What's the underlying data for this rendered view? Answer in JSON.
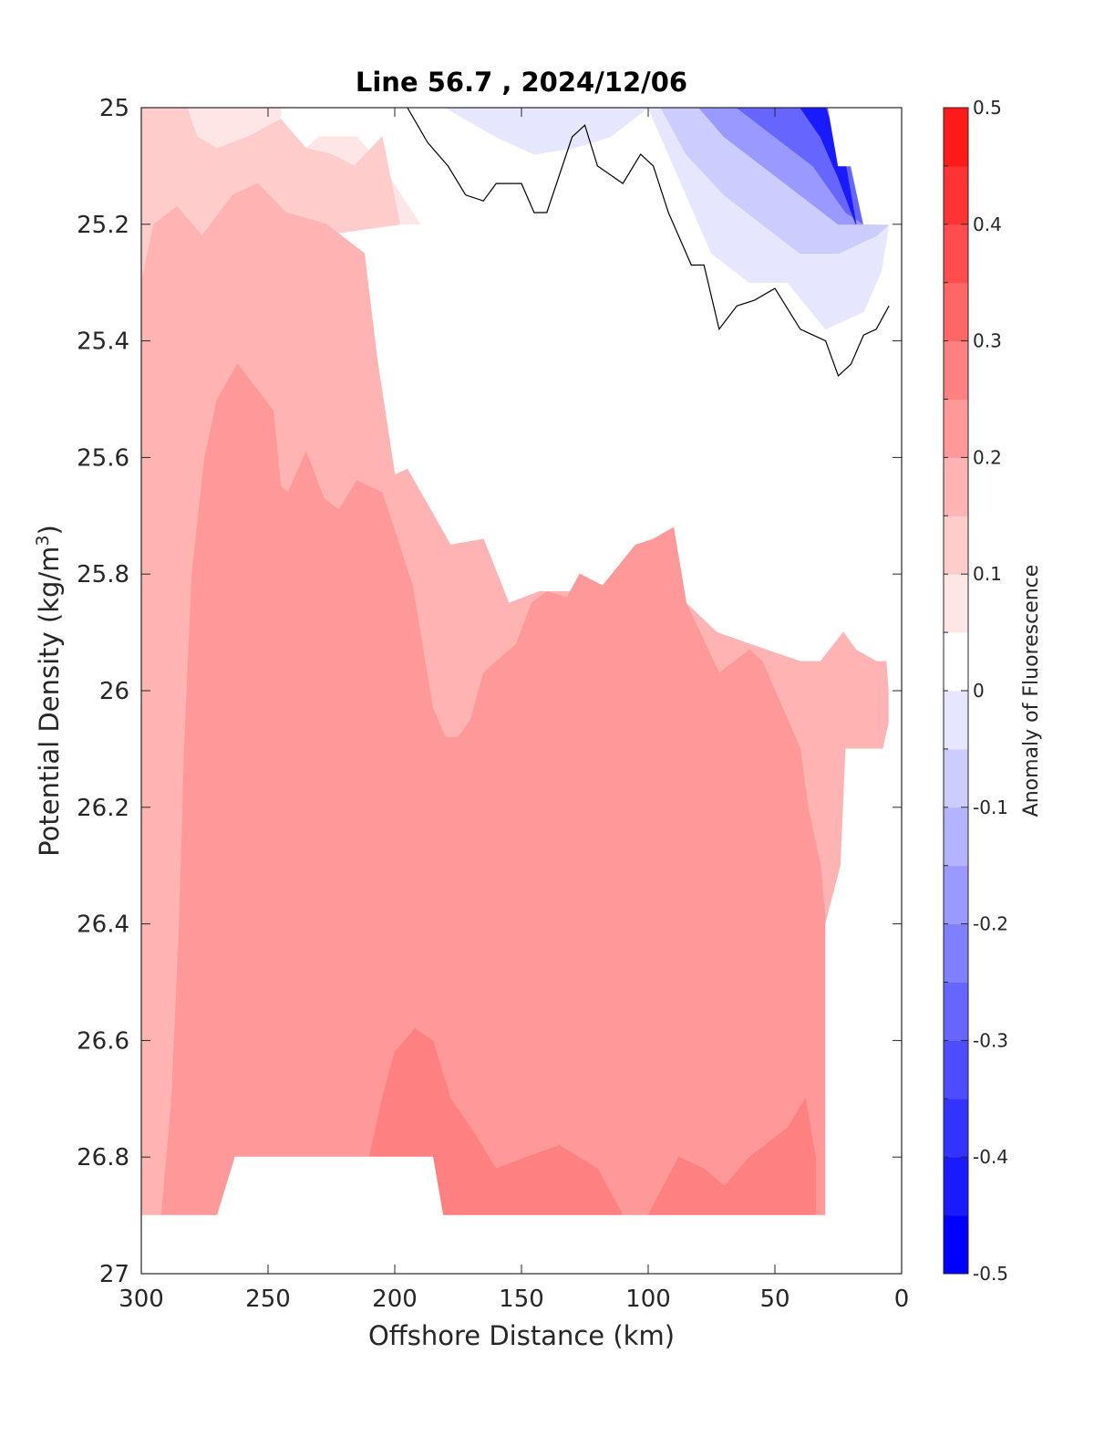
{
  "chart_data": {
    "type": "contour",
    "title": "Line 56.7 , 2024/12/06",
    "xlabel": "Offshore Distance (km)",
    "ylabel": "Potential Density (kg/m³)",
    "ylabel_main": "Potential Density (kg/m",
    "ylabel_sup": "3",
    "ylabel_end": ")",
    "colorbar_label": "Anomaly of Fluorescence",
    "xlim": [
      300,
      0
    ],
    "ylim": [
      25,
      27
    ],
    "y_reversed": true,
    "x_reversed": true,
    "x_ticks": [
      300,
      250,
      200,
      150,
      100,
      50,
      0
    ],
    "x_tick_labels": [
      "300",
      "250",
      "200",
      "150",
      "100",
      "50",
      "0"
    ],
    "y_ticks": [
      25,
      25.2,
      25.4,
      25.6,
      25.8,
      26,
      26.2,
      26.4,
      26.6,
      26.8,
      27
    ],
    "y_tick_labels": [
      "25",
      "25.2",
      "25.4",
      "25.6",
      "25.8",
      "26",
      "26.2",
      "26.4",
      "26.6",
      "26.8",
      "27"
    ],
    "colorbar": {
      "range": [
        -0.5,
        0.5
      ],
      "levels": [
        -0.5,
        -0.45,
        -0.4,
        -0.35,
        -0.3,
        -0.25,
        -0.2,
        -0.15,
        -0.1,
        -0.05,
        0,
        0.05,
        0.1,
        0.15,
        0.2,
        0.25,
        0.3,
        0.35,
        0.4,
        0.45,
        0.5
      ],
      "colors": [
        "#0000ff",
        "#1a1aff",
        "#3333ff",
        "#4d4dff",
        "#6666ff",
        "#8080ff",
        "#9999ff",
        "#b3b3ff",
        "#ccccff",
        "#e6e6ff",
        "#ffffff",
        "#ffe6e6",
        "#ffcccc",
        "#ffb3b3",
        "#ff9999",
        "#ff8080",
        "#ff6666",
        "#ff4d4d",
        "#ff3333",
        "#ff1a1a",
        "#ff0000"
      ],
      "ticks": [
        -0.5,
        -0.4,
        -0.3,
        -0.2,
        -0.1,
        0,
        0.1,
        0.2,
        0.3,
        0.4,
        0.5
      ],
      "tick_labels": [
        "-0.5",
        "-0.4",
        "-0.3",
        "-0.2",
        "-0.1",
        "0",
        "0.1",
        "0.2",
        "0.3",
        "0.4",
        "0.5"
      ]
    },
    "regions": [
      {
        "name": "anomaly 0.05 to 0.10",
        "color": "#ffe6e6",
        "points": [
          [
            300,
            25
          ],
          [
            245,
            25
          ],
          [
            245,
            25.05
          ],
          [
            240,
            25.09
          ],
          [
            230,
            25.05
          ],
          [
            215,
            25.05
          ],
          [
            205,
            25.1
          ],
          [
            190,
            25.2
          ],
          [
            300,
            25.2
          ]
        ]
      },
      {
        "name": "anomaly 0.10 to 0.15",
        "color": "#ffcccc",
        "points": [
          [
            300,
            25
          ],
          [
            282,
            25
          ],
          [
            278,
            25.05
          ],
          [
            270,
            25.07
          ],
          [
            258,
            25.05
          ],
          [
            245,
            25.02
          ],
          [
            235,
            25.07
          ],
          [
            225,
            25.08
          ],
          [
            216,
            25.1
          ],
          [
            205,
            25.05
          ],
          [
            198,
            25.2
          ],
          [
            280,
            25.25
          ],
          [
            300,
            25.3
          ]
        ]
      },
      {
        "name": "anomaly 0.15 to 0.20",
        "color": "#ffb3b3",
        "points": [
          [
            300,
            25.3
          ],
          [
            295,
            25.2
          ],
          [
            286,
            25.17
          ],
          [
            276,
            25.22
          ],
          [
            264,
            25.15
          ],
          [
            254,
            25.13
          ],
          [
            243,
            25.18
          ],
          [
            227,
            25.2
          ],
          [
            212,
            25.25
          ],
          [
            207,
            25.43
          ],
          [
            200,
            25.63
          ],
          [
            195,
            25.62
          ],
          [
            178,
            25.75
          ],
          [
            165,
            25.74
          ],
          [
            155,
            25.85
          ],
          [
            143,
            25.83
          ],
          [
            128,
            25.83
          ],
          [
            120,
            25.9
          ],
          [
            115,
            25.85
          ],
          [
            100,
            25.88
          ],
          [
            88,
            25.9
          ],
          [
            85,
            25.85
          ],
          [
            73,
            25.9
          ],
          [
            60,
            25.92
          ],
          [
            40,
            25.95
          ],
          [
            32,
            25.95
          ],
          [
            23,
            25.9
          ],
          [
            18,
            25.93
          ],
          [
            10,
            25.95
          ],
          [
            5,
            25.95
          ],
          [
            5,
            26.05
          ],
          [
            18,
            26.3
          ],
          [
            24,
            26.5
          ],
          [
            34,
            26.8
          ],
          [
            34,
            26.9
          ],
          [
            300,
            26.9
          ]
        ]
      },
      {
        "name": "anomaly 0.20 to 0.25",
        "color": "#ff9999",
        "points": [
          [
            292,
            26.9
          ],
          [
            288,
            26.7
          ],
          [
            285,
            26.4
          ],
          [
            283,
            26.1
          ],
          [
            280,
            25.8
          ],
          [
            275,
            25.6
          ],
          [
            270,
            25.5
          ],
          [
            262,
            25.44
          ],
          [
            255,
            25.48
          ],
          [
            248,
            25.52
          ],
          [
            245,
            25.65
          ],
          [
            242,
            25.66
          ],
          [
            235,
            25.59
          ],
          [
            228,
            25.67
          ],
          [
            222,
            25.69
          ],
          [
            215,
            25.64
          ],
          [
            205,
            25.66
          ],
          [
            193,
            25.82
          ],
          [
            185,
            26.03
          ],
          [
            180,
            26.08
          ],
          [
            175,
            26.08
          ],
          [
            170,
            26.05
          ],
          [
            165,
            25.97
          ],
          [
            160,
            25.95
          ],
          [
            152,
            25.92
          ],
          [
            146,
            25.85
          ],
          [
            140,
            25.83
          ],
          [
            132,
            25.84
          ],
          [
            127,
            25.8
          ],
          [
            118,
            25.82
          ],
          [
            105,
            25.75
          ],
          [
            98,
            25.74
          ],
          [
            90,
            25.72
          ],
          [
            85,
            25.85
          ],
          [
            72,
            25.97
          ],
          [
            60,
            25.93
          ],
          [
            55,
            25.95
          ],
          [
            48,
            26.02
          ],
          [
            40,
            26.1
          ],
          [
            37,
            26.2
          ],
          [
            32,
            26.3
          ],
          [
            30,
            26.4
          ],
          [
            30,
            26.5
          ],
          [
            30,
            26.9
          ]
        ]
      },
      {
        "name": "anomaly 0.25 to 0.30",
        "color": "#ff8080",
        "points": [
          [
            215,
            26.9
          ],
          [
            205,
            26.7
          ],
          [
            200,
            26.62
          ],
          [
            192,
            26.58
          ],
          [
            185,
            26.6
          ],
          [
            178,
            26.7
          ],
          [
            170,
            26.75
          ],
          [
            160,
            26.82
          ],
          [
            148,
            26.8
          ],
          [
            135,
            26.78
          ],
          [
            120,
            26.82
          ],
          [
            110,
            26.9
          ],
          [
            100,
            26.9
          ],
          [
            88,
            26.8
          ],
          [
            78,
            26.82
          ],
          [
            70,
            26.85
          ],
          [
            60,
            26.8
          ],
          [
            45,
            26.75
          ],
          [
            38,
            26.7
          ],
          [
            34,
            26.8
          ],
          [
            34,
            26.9
          ]
        ]
      },
      {
        "name": "anomaly 0.00 to 0.05",
        "color": "#ffffff",
        "points": [
          [
            192,
            25
          ],
          [
            170,
            25.1
          ],
          [
            150,
            25.15
          ],
          [
            130,
            25.18
          ],
          [
            115,
            25.22
          ],
          [
            105,
            25.25
          ],
          [
            100,
            25.2
          ],
          [
            80,
            25.35
          ],
          [
            70,
            25.45
          ],
          [
            55,
            25.55
          ],
          [
            40,
            25.58
          ],
          [
            20,
            25.45
          ],
          [
            5,
            25.38
          ],
          [
            5,
            25.25
          ],
          [
            25,
            25.25
          ],
          [
            40,
            25.25
          ],
          [
            55,
            25.15
          ],
          [
            70,
            25.05
          ],
          [
            90,
            25.05
          ],
          [
            100,
            25
          ],
          [
            192,
            25
          ]
        ]
      },
      {
        "name": "anomaly -0.05 to 0.00",
        "color": "#e6e6ff",
        "points": [
          [
            180,
            25
          ],
          [
            160,
            25.05
          ],
          [
            145,
            25.08
          ],
          [
            130,
            25.07
          ],
          [
            115,
            25.05
          ],
          [
            100,
            25
          ],
          [
            95,
            25.05
          ],
          [
            85,
            25.15
          ],
          [
            75,
            25.25
          ],
          [
            60,
            25.3
          ],
          [
            45,
            25.3
          ],
          [
            30,
            25.38
          ],
          [
            15,
            25.35
          ],
          [
            8,
            25.28
          ],
          [
            5,
            25.2
          ],
          [
            25,
            25.18
          ],
          [
            35,
            25.1
          ],
          [
            45,
            25
          ],
          [
            180,
            25
          ]
        ]
      },
      {
        "name": "anomaly -0.10 to -0.05",
        "color": "#ccccff",
        "points": [
          [
            95,
            25
          ],
          [
            85,
            25.08
          ],
          [
            70,
            25.15
          ],
          [
            55,
            25.2
          ],
          [
            40,
            25.25
          ],
          [
            25,
            25.25
          ],
          [
            10,
            25.22
          ],
          [
            5,
            25.2
          ],
          [
            20,
            25.1
          ],
          [
            30,
            25
          ],
          [
            95,
            25
          ]
        ]
      },
      {
        "name": "anomaly -0.20 to -0.10",
        "color": "#9999ff",
        "points": [
          [
            80,
            25
          ],
          [
            70,
            25.05
          ],
          [
            55,
            25.1
          ],
          [
            40,
            25.15
          ],
          [
            25,
            25.2
          ],
          [
            10,
            25.2
          ],
          [
            20,
            25.05
          ],
          [
            25,
            25
          ],
          [
            80,
            25
          ]
        ]
      },
      {
        "name": "anomaly -0.35 to -0.20",
        "color": "#6666ff",
        "points": [
          [
            65,
            25
          ],
          [
            50,
            25.05
          ],
          [
            35,
            25.1
          ],
          [
            22,
            25.18
          ],
          [
            15,
            25.2
          ],
          [
            20,
            25.08
          ],
          [
            25,
            25
          ],
          [
            65,
            25
          ]
        ]
      },
      {
        "name": "anomaly -0.50 to -0.35",
        "color": "#1a1aff",
        "points": [
          [
            40,
            25
          ],
          [
            32,
            25.05
          ],
          [
            25,
            25.12
          ],
          [
            18,
            25.2
          ],
          [
            22,
            25.1
          ],
          [
            30,
            25
          ],
          [
            40,
            25
          ]
        ]
      }
    ],
    "mask_regions": [
      {
        "name": "no-data top-right",
        "points": [
          [
            29,
            25
          ],
          [
            0,
            25
          ],
          [
            0,
            25.2
          ],
          [
            15,
            25.2
          ],
          [
            20,
            25.1
          ],
          [
            25,
            25.1
          ]
        ]
      },
      {
        "name": "no-data bottom",
        "points": [
          [
            300,
            26.9
          ],
          [
            0,
            26.9
          ],
          [
            0,
            27
          ],
          [
            300,
            27
          ]
        ]
      },
      {
        "name": "no-data right edge",
        "points": [
          [
            5,
            25.2
          ],
          [
            0,
            25.2
          ],
          [
            0,
            26.9
          ],
          [
            30,
            26.9
          ],
          [
            30,
            26.6
          ],
          [
            30,
            26.4
          ],
          [
            24,
            26.3
          ],
          [
            22,
            26.1
          ],
          [
            5,
            26.1
          ],
          [
            5,
            26.0
          ],
          [
            10,
            25.7
          ],
          [
            5,
            25.3
          ]
        ]
      },
      {
        "name": "no-data bottom-left gap",
        "points": [
          [
            270,
            26.9
          ],
          [
            263,
            26.8
          ],
          [
            185,
            26.8
          ],
          [
            181,
            26.9
          ]
        ]
      }
    ],
    "contour_lines": [
      {
        "level": 0,
        "points": [
          [
            195,
            25
          ],
          [
            187,
            25.06
          ],
          [
            179,
            25.1
          ],
          [
            172,
            25.15
          ],
          [
            165,
            25.16
          ],
          [
            160,
            25.13
          ],
          [
            150,
            25.13
          ],
          [
            145,
            25.18
          ],
          [
            140,
            25.18
          ],
          [
            130,
            25.05
          ],
          [
            125,
            25.03
          ],
          [
            120,
            25.1
          ],
          [
            110,
            25.13
          ],
          [
            103,
            25.08
          ],
          [
            98,
            25.1
          ],
          [
            92,
            25.18
          ],
          [
            83,
            25.27
          ],
          [
            78,
            25.27
          ],
          [
            72,
            25.38
          ],
          [
            65,
            25.34
          ],
          [
            58,
            25.33
          ],
          [
            50,
            25.31
          ],
          [
            40,
            25.38
          ],
          [
            30,
            25.4
          ],
          [
            25,
            25.46
          ],
          [
            20,
            25.44
          ],
          [
            15,
            25.39
          ],
          [
            10,
            25.38
          ],
          [
            5,
            25.34
          ]
        ]
      }
    ]
  }
}
